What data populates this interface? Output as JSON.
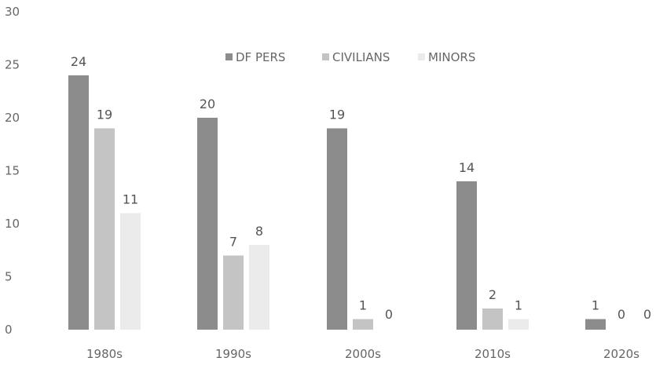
{
  "chart_data": {
    "type": "bar",
    "categories": [
      "1980s",
      "1990s",
      "2000s",
      "2010s",
      "2020s"
    ],
    "series": [
      {
        "name": "DF PERS",
        "values": [
          24,
          20,
          19,
          14,
          1
        ]
      },
      {
        "name": "CIVILIANS",
        "values": [
          19,
          7,
          1,
          2,
          0
        ]
      },
      {
        "name": "MINORS",
        "values": [
          11,
          8,
          0,
          1,
          0
        ]
      }
    ],
    "ylim": [
      0,
      30
    ],
    "yticks": [
      "0",
      "5",
      "10",
      "15",
      "20",
      "25",
      "30"
    ],
    "grid": false,
    "legend": "top-center",
    "colors": [
      "#8c8c8c",
      "#c4c4c4",
      "#ebebeb"
    ]
  }
}
